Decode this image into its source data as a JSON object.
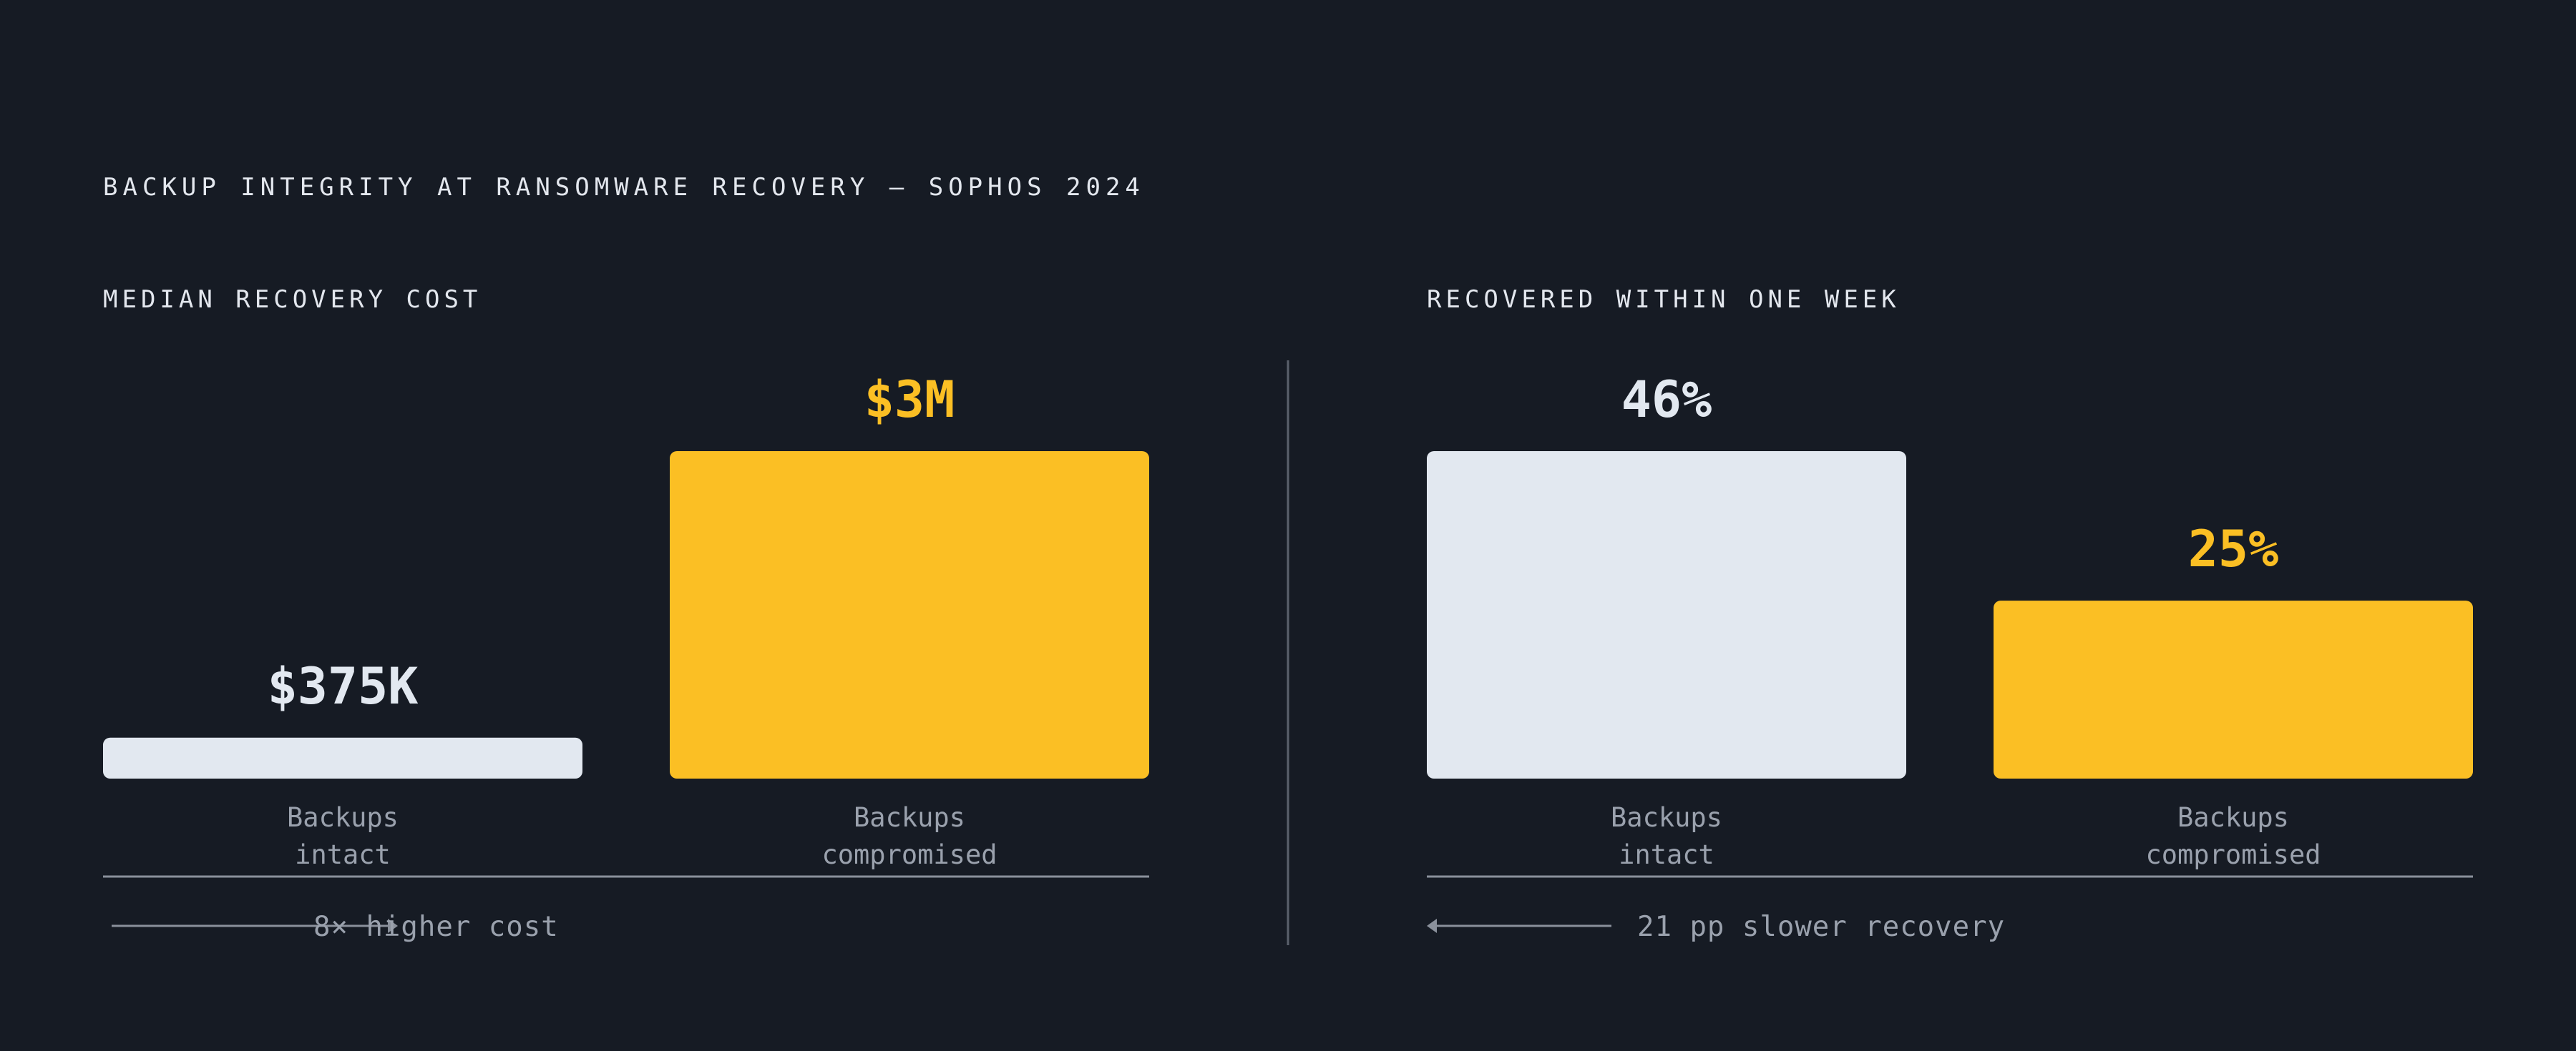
{
  "title": "BACKUP INTEGRITY AT RANSOMWARE RECOVERY — SOPHOS 2024",
  "colors": {
    "background": "#161b24",
    "intact": "#e2e8f0",
    "compromised": "#fbbf24",
    "muted": "#9aa1ad",
    "axis": "#8a909b"
  },
  "chart_data": [
    {
      "type": "bar",
      "title": "MEDIAN RECOVERY COST",
      "categories": [
        "Backups\nintact",
        "Backups\ncompromised"
      ],
      "values": [
        375000,
        3000000
      ],
      "value_labels": [
        "$375K",
        "$3M"
      ],
      "ylim": [
        0,
        3000000
      ],
      "grid": false,
      "annotation": "8× higher cost",
      "arrow_direction": "right"
    },
    {
      "type": "bar",
      "title": "RECOVERED WITHIN ONE WEEK",
      "categories": [
        "Backups\nintact",
        "Backups\ncompromised"
      ],
      "values": [
        46,
        25
      ],
      "value_labels": [
        "46%",
        "25%"
      ],
      "ylim": [
        0,
        46
      ],
      "grid": false,
      "annotation": "21 pp slower recovery",
      "arrow_direction": "left"
    }
  ]
}
